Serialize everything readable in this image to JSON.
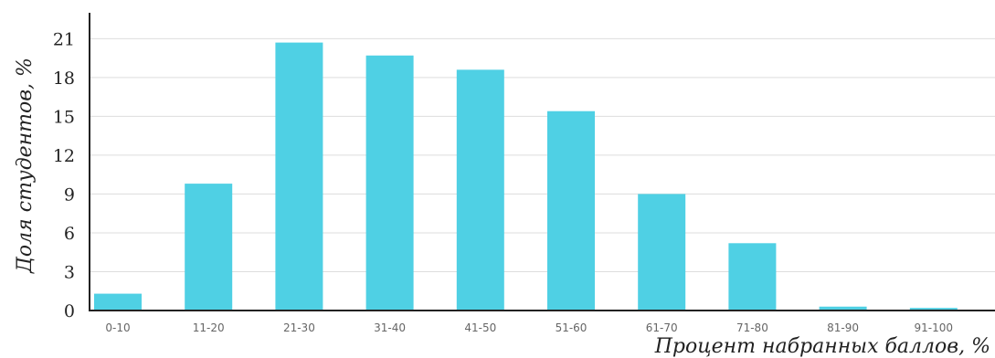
{
  "chart_data": {
    "type": "bar",
    "categories": [
      "0-10",
      "11-20",
      "21-30",
      "31-40",
      "41-50",
      "51-60",
      "61-70",
      "71-80",
      "81-90",
      "91-100"
    ],
    "values": [
      1.3,
      9.8,
      20.7,
      19.7,
      18.6,
      15.4,
      9.0,
      5.2,
      0.3,
      0.2
    ],
    "title": "",
    "xlabel": "Процент набранных баллов, %",
    "ylabel": "Доля студентов, %",
    "ylim": [
      0,
      23
    ],
    "yticks": [
      0,
      3,
      6,
      9,
      12,
      15,
      18,
      21
    ],
    "grid": true,
    "bar_color": "#4fd0e4",
    "grid_color": "#dddddd"
  }
}
